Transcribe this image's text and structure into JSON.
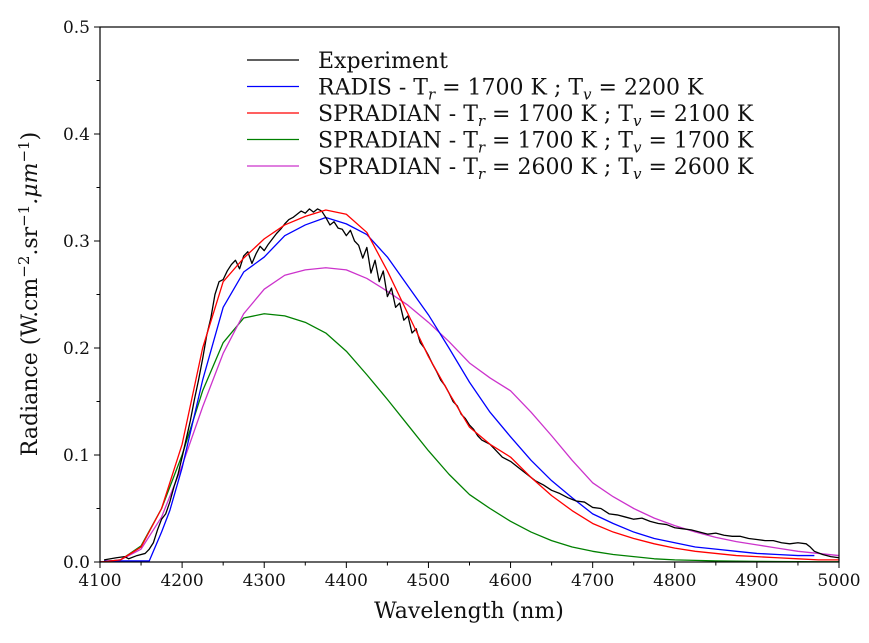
{
  "chart_data": {
    "type": "line",
    "title": "",
    "xlabel": "Wavelength (nm)",
    "ylabel_parts": {
      "base": "Radiance (W.cm",
      "sup1": "−2",
      "mid": ".sr",
      "sup2": "−1",
      "mid2": ".μm",
      "sup3": "−1",
      "end": ")"
    },
    "ylabel": "Radiance (W.cm^-2.sr^-1.μm^-1)",
    "xlim": [
      4100,
      5000
    ],
    "ylim": [
      0.0,
      0.5
    ],
    "xticks": [
      "4100",
      "4200",
      "4300",
      "4400",
      "4500",
      "4600",
      "4700",
      "4800",
      "4900",
      "5000"
    ],
    "xtick_values": [
      4100,
      4200,
      4300,
      4400,
      4500,
      4600,
      4700,
      4800,
      4900,
      5000
    ],
    "yticks": [
      "0.0",
      "0.1",
      "0.2",
      "0.3",
      "0.4",
      "0.5"
    ],
    "ytick_values": [
      0.0,
      0.1,
      0.2,
      0.3,
      0.4,
      0.5
    ],
    "grid": false,
    "legend_position": "top-center",
    "series": [
      {
        "name": "Experiment",
        "legend": {
          "pre": "Experiment"
        },
        "color": "#000000",
        "x": [
          4105,
          4120,
          4130,
          4135,
          4145,
          4155,
          4160,
          4165,
          4170,
          4175,
          4180,
          4185,
          4190,
          4195,
          4200,
          4205,
          4210,
          4215,
          4220,
          4225,
          4230,
          4235,
          4240,
          4245,
          4250,
          4255,
          4260,
          4265,
          4270,
          4275,
          4280,
          4285,
          4290,
          4295,
          4300,
          4305,
          4310,
          4315,
          4320,
          4325,
          4330,
          4335,
          4340,
          4345,
          4350,
          4355,
          4360,
          4365,
          4370,
          4375,
          4380,
          4385,
          4390,
          4395,
          4400,
          4405,
          4410,
          4415,
          4420,
          4425,
          4430,
          4435,
          4440,
          4445,
          4450,
          4455,
          4460,
          4465,
          4470,
          4475,
          4480,
          4485,
          4490,
          4495,
          4500,
          4505,
          4510,
          4515,
          4520,
          4525,
          4530,
          4535,
          4540,
          4545,
          4550,
          4555,
          4560,
          4565,
          4570,
          4575,
          4580,
          4590,
          4600,
          4610,
          4620,
          4630,
          4640,
          4650,
          4660,
          4670,
          4680,
          4690,
          4700,
          4710,
          4720,
          4730,
          4740,
          4750,
          4760,
          4770,
          4780,
          4790,
          4800,
          4810,
          4820,
          4830,
          4840,
          4850,
          4860,
          4870,
          4880,
          4890,
          4900,
          4910,
          4920,
          4930,
          4940,
          4950,
          4960,
          4965,
          4970,
          4980,
          4990,
          5000
        ],
        "y": [
          0.002,
          0.004,
          0.005,
          0.003,
          0.006,
          0.008,
          0.012,
          0.018,
          0.03,
          0.04,
          0.045,
          0.056,
          0.07,
          0.082,
          0.098,
          0.115,
          0.132,
          0.152,
          0.17,
          0.19,
          0.212,
          0.228,
          0.25,
          0.262,
          0.264,
          0.272,
          0.278,
          0.282,
          0.274,
          0.286,
          0.29,
          0.279,
          0.288,
          0.295,
          0.291,
          0.297,
          0.302,
          0.307,
          0.311,
          0.316,
          0.32,
          0.322,
          0.325,
          0.328,
          0.326,
          0.33,
          0.327,
          0.33,
          0.328,
          0.322,
          0.315,
          0.318,
          0.312,
          0.311,
          0.305,
          0.31,
          0.3,
          0.296,
          0.284,
          0.294,
          0.27,
          0.282,
          0.262,
          0.272,
          0.248,
          0.256,
          0.238,
          0.242,
          0.226,
          0.23,
          0.214,
          0.218,
          0.205,
          0.2,
          0.193,
          0.185,
          0.178,
          0.17,
          0.165,
          0.158,
          0.15,
          0.146,
          0.138,
          0.134,
          0.128,
          0.124,
          0.118,
          0.114,
          0.112,
          0.11,
          0.106,
          0.098,
          0.094,
          0.088,
          0.082,
          0.076,
          0.072,
          0.067,
          0.064,
          0.06,
          0.057,
          0.056,
          0.051,
          0.05,
          0.045,
          0.044,
          0.042,
          0.04,
          0.041,
          0.038,
          0.036,
          0.035,
          0.032,
          0.031,
          0.03,
          0.028,
          0.026,
          0.027,
          0.025,
          0.024,
          0.024,
          0.022,
          0.021,
          0.02,
          0.02,
          0.018,
          0.017,
          0.018,
          0.017,
          0.014,
          0.01,
          0.007,
          0.005,
          0.004
        ]
      },
      {
        "name": "RADIS - Tr = 1700 K ; Tv = 2200 K",
        "legend": {
          "pre": "RADIS - T",
          "sub1": "r",
          "mid": " = 1700 K ; T",
          "sub2": "v",
          "post": " = 2200 K"
        },
        "color": "#0000ff",
        "x": [
          4105,
          4160,
          4165,
          4175,
          4185,
          4200,
          4225,
          4250,
          4275,
          4300,
          4325,
          4350,
          4375,
          4400,
          4425,
          4450,
          4475,
          4500,
          4525,
          4550,
          4575,
          4600,
          4625,
          4650,
          4675,
          4700,
          4725,
          4750,
          4775,
          4800,
          4825,
          4850,
          4875,
          4900,
          4925,
          4950,
          4970
        ],
        "y": [
          0.001,
          0.001,
          0.01,
          0.028,
          0.048,
          0.088,
          0.17,
          0.238,
          0.271,
          0.285,
          0.305,
          0.315,
          0.322,
          0.316,
          0.306,
          0.285,
          0.258,
          0.231,
          0.2,
          0.168,
          0.14,
          0.117,
          0.095,
          0.076,
          0.06,
          0.045,
          0.036,
          0.028,
          0.022,
          0.018,
          0.014,
          0.012,
          0.01,
          0.008,
          0.007,
          0.006,
          0.006
        ]
      },
      {
        "name": "SPRADIAN - Tr = 1700 K ; Tv = 2100 K",
        "legend": {
          "pre": "SPRADIAN - T",
          "sub1": "r",
          "mid": " = 1700 K ; T",
          "sub2": "v",
          "post": " = 2100 K"
        },
        "color": "#ff0000",
        "x": [
          4100,
          4125,
          4150,
          4175,
          4200,
          4225,
          4250,
          4275,
          4300,
          4325,
          4350,
          4375,
          4400,
          4425,
          4450,
          4475,
          4500,
          4525,
          4550,
          4575,
          4600,
          4625,
          4650,
          4675,
          4700,
          4725,
          4750,
          4775,
          4800,
          4825,
          4850,
          4875,
          4900,
          4925,
          4950,
          4975,
          5000
        ],
        "y": [
          0.0,
          0.002,
          0.014,
          0.05,
          0.11,
          0.2,
          0.262,
          0.284,
          0.302,
          0.315,
          0.323,
          0.329,
          0.325,
          0.308,
          0.272,
          0.232,
          0.192,
          0.158,
          0.126,
          0.11,
          0.098,
          0.079,
          0.062,
          0.048,
          0.036,
          0.028,
          0.022,
          0.017,
          0.013,
          0.01,
          0.008,
          0.006,
          0.005,
          0.004,
          0.003,
          0.002,
          0.002
        ]
      },
      {
        "name": "SPRADIAN - Tr = 1700 K ; Tv = 1700 K",
        "legend": {
          "pre": "SPRADIAN - T",
          "sub1": "r",
          "mid": " = 1700 K ; T",
          "sub2": "v",
          "post": " = 1700 K"
        },
        "color": "#008000",
        "x": [
          4100,
          4125,
          4150,
          4175,
          4200,
          4225,
          4250,
          4275,
          4300,
          4325,
          4350,
          4375,
          4400,
          4425,
          4450,
          4475,
          4500,
          4525,
          4550,
          4575,
          4600,
          4625,
          4650,
          4675,
          4700,
          4725,
          4750,
          4775,
          4800,
          4825,
          4850,
          4875,
          4900,
          4925,
          4950,
          4975,
          5000
        ],
        "y": [
          0.0,
          0.002,
          0.015,
          0.05,
          0.1,
          0.16,
          0.205,
          0.228,
          0.232,
          0.23,
          0.224,
          0.214,
          0.197,
          0.175,
          0.152,
          0.128,
          0.104,
          0.082,
          0.063,
          0.05,
          0.038,
          0.028,
          0.02,
          0.014,
          0.01,
          0.007,
          0.005,
          0.003,
          0.002,
          0.0015,
          0.001,
          0.0008,
          0.0006,
          0.0004,
          0.0003,
          0.0002,
          0.0002
        ]
      },
      {
        "name": "SPRADIAN - Tr = 2600 K ; Tv = 2600 K",
        "legend": {
          "pre": "SPRADIAN - T",
          "sub1": "r",
          "mid": " = 2600 K ; T",
          "sub2": "v",
          "post": " = 2600 K"
        },
        "color": "#cc33cc",
        "x": [
          4100,
          4125,
          4150,
          4175,
          4200,
          4225,
          4250,
          4275,
          4300,
          4325,
          4350,
          4375,
          4400,
          4425,
          4450,
          4475,
          4500,
          4525,
          4550,
          4575,
          4600,
          4625,
          4650,
          4675,
          4700,
          4725,
          4750,
          4775,
          4800,
          4825,
          4850,
          4875,
          4900,
          4925,
          4950,
          4975,
          5000
        ],
        "y": [
          0.0,
          0.002,
          0.012,
          0.042,
          0.09,
          0.145,
          0.195,
          0.232,
          0.255,
          0.268,
          0.273,
          0.275,
          0.273,
          0.265,
          0.253,
          0.24,
          0.224,
          0.206,
          0.186,
          0.172,
          0.16,
          0.14,
          0.118,
          0.095,
          0.074,
          0.061,
          0.05,
          0.041,
          0.034,
          0.028,
          0.023,
          0.019,
          0.016,
          0.013,
          0.01,
          0.008,
          0.006
        ]
      }
    ]
  }
}
